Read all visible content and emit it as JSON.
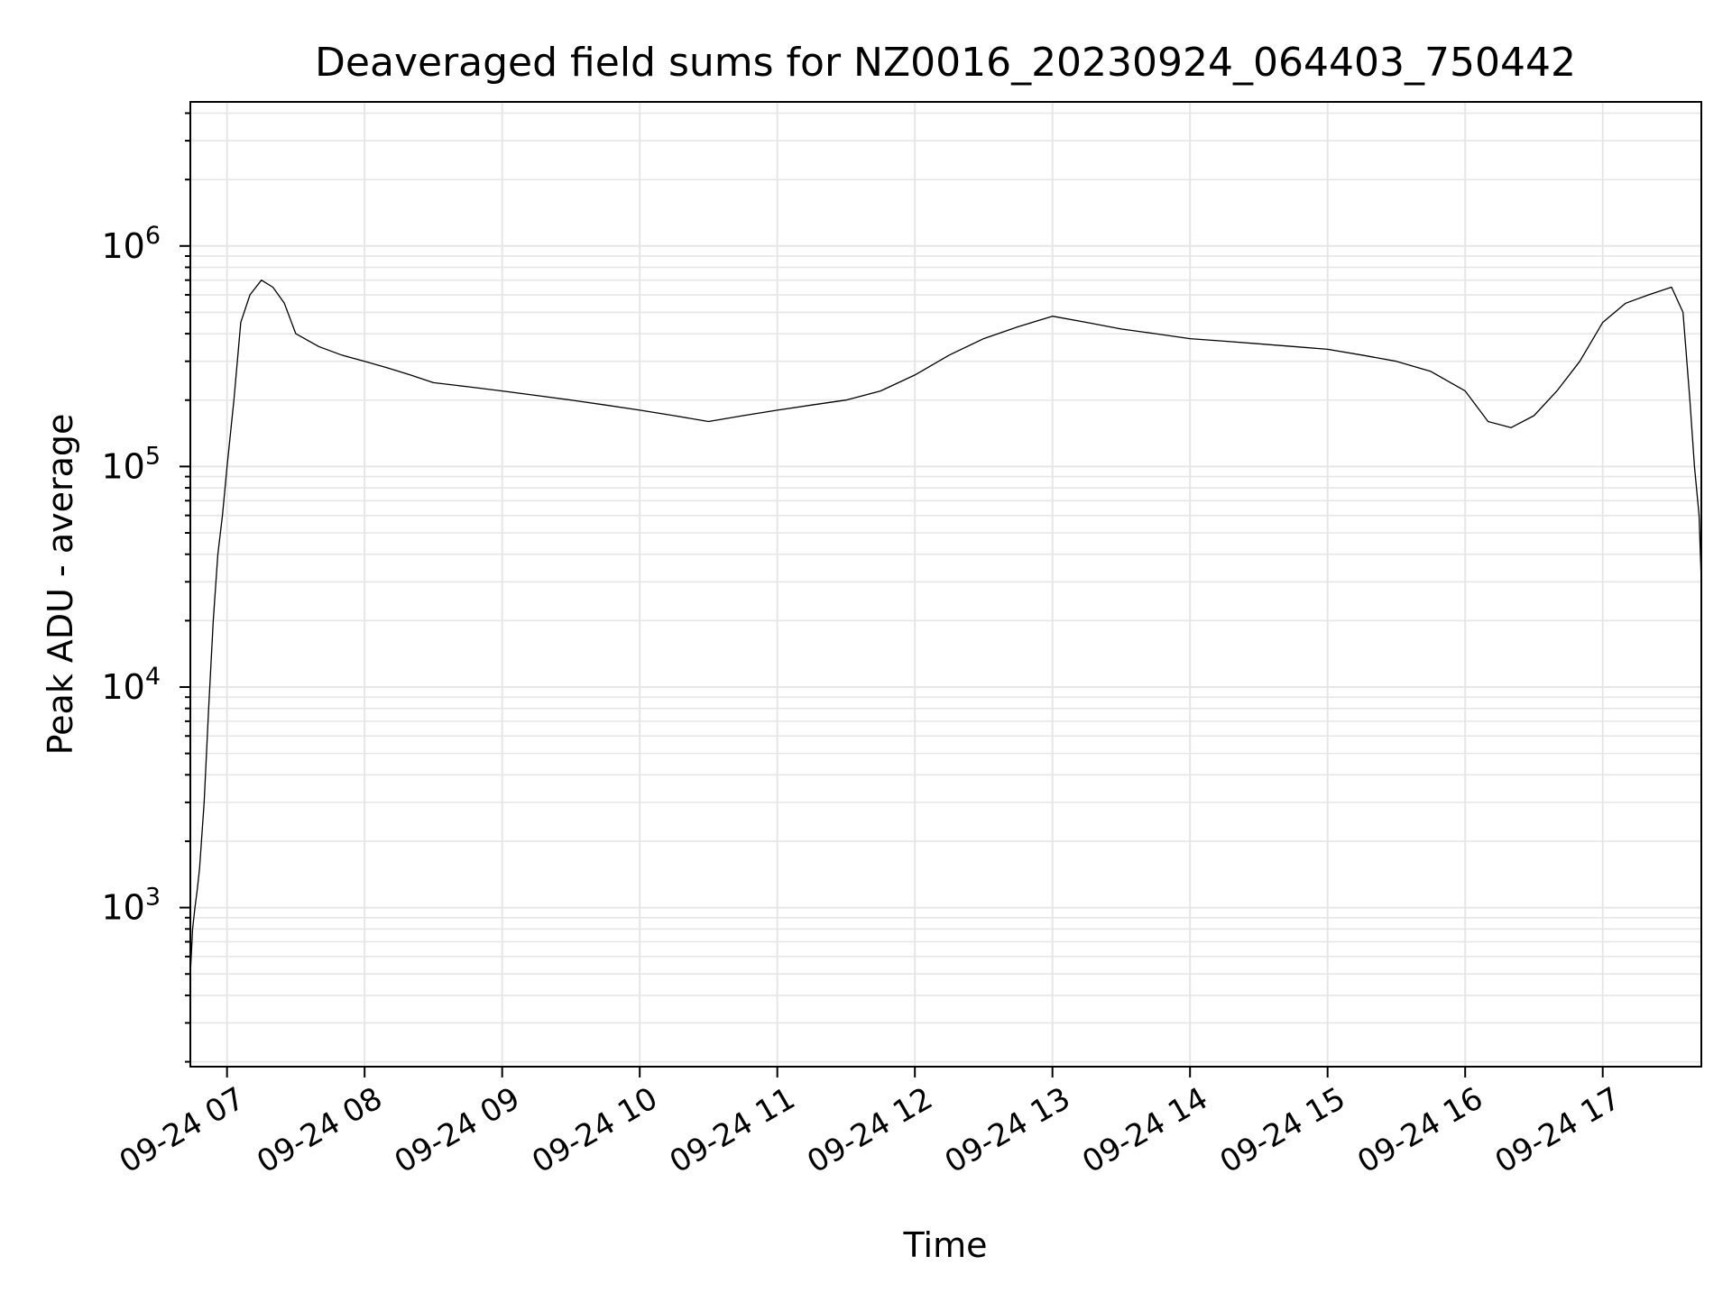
{
  "chart_data": {
    "type": "line",
    "title": "Deaveraged field sums for NZ0016_20230924_064403_750442",
    "xlabel": "Time",
    "ylabel": "Peak ADU - average",
    "yscale": "log",
    "ylim": [
      190,
      4500000
    ],
    "xlim": [
      "2023-09-24 06:44",
      "2023-09-24 17:43"
    ],
    "grid": true,
    "grid_minor": true,
    "line_color": "#000000",
    "grid_color": "#e6e6e6",
    "x_ticks": [
      {
        "t": "2023-09-24 07:00",
        "label": "09-24 07"
      },
      {
        "t": "2023-09-24 08:00",
        "label": "09-24 08"
      },
      {
        "t": "2023-09-24 09:00",
        "label": "09-24 09"
      },
      {
        "t": "2023-09-24 10:00",
        "label": "09-24 10"
      },
      {
        "t": "2023-09-24 11:00",
        "label": "09-24 11"
      },
      {
        "t": "2023-09-24 12:00",
        "label": "09-24 12"
      },
      {
        "t": "2023-09-24 13:00",
        "label": "09-24 13"
      },
      {
        "t": "2023-09-24 14:00",
        "label": "09-24 14"
      },
      {
        "t": "2023-09-24 15:00",
        "label": "09-24 15"
      },
      {
        "t": "2023-09-24 16:00",
        "label": "09-24 16"
      },
      {
        "t": "2023-09-24 17:00",
        "label": "09-24 17"
      }
    ],
    "y_ticks": [
      {
        "value": 1000,
        "mantissa": "10",
        "exponent": "3"
      },
      {
        "value": 10000,
        "mantissa": "10",
        "exponent": "4"
      },
      {
        "value": 100000,
        "mantissa": "10",
        "exponent": "5"
      },
      {
        "value": 1000000,
        "mantissa": "10",
        "exponent": "6"
      }
    ],
    "series": [
      {
        "x": [
          "2023-09-24 06:44",
          "2023-09-24 06:45",
          "2023-09-24 06:46",
          "2023-09-24 06:47",
          "2023-09-24 06:48",
          "2023-09-24 06:50",
          "2023-09-24 06:52",
          "2023-09-24 06:54",
          "2023-09-24 06:56",
          "2023-09-24 06:58",
          "2023-09-24 07:00",
          "2023-09-24 07:03",
          "2023-09-24 07:06",
          "2023-09-24 07:10",
          "2023-09-24 07:15",
          "2023-09-24 07:20",
          "2023-09-24 07:25",
          "2023-09-24 07:30",
          "2023-09-24 07:40",
          "2023-09-24 07:50",
          "2023-09-24 08:00",
          "2023-09-24 08:10",
          "2023-09-24 08:20",
          "2023-09-24 08:30",
          "2023-09-24 08:45",
          "2023-09-24 09:00",
          "2023-09-24 09:15",
          "2023-09-24 09:30",
          "2023-09-24 09:45",
          "2023-09-24 10:00",
          "2023-09-24 10:15",
          "2023-09-24 10:30",
          "2023-09-24 10:45",
          "2023-09-24 11:00",
          "2023-09-24 11:15",
          "2023-09-24 11:30",
          "2023-09-24 11:45",
          "2023-09-24 12:00",
          "2023-09-24 12:15",
          "2023-09-24 12:30",
          "2023-09-24 12:45",
          "2023-09-24 13:00",
          "2023-09-24 13:15",
          "2023-09-24 13:30",
          "2023-09-24 13:45",
          "2023-09-24 14:00",
          "2023-09-24 14:15",
          "2023-09-24 14:30",
          "2023-09-24 14:45",
          "2023-09-24 15:00",
          "2023-09-24 15:15",
          "2023-09-24 15:30",
          "2023-09-24 15:45",
          "2023-09-24 16:00",
          "2023-09-24 16:10",
          "2023-09-24 16:20",
          "2023-09-24 16:30",
          "2023-09-24 16:40",
          "2023-09-24 16:50",
          "2023-09-24 17:00",
          "2023-09-24 17:10",
          "2023-09-24 17:20",
          "2023-09-24 17:30",
          "2023-09-24 17:35",
          "2023-09-24 17:38",
          "2023-09-24 17:40",
          "2023-09-24 17:42",
          "2023-09-24 17:43"
        ],
        "y": [
          500,
          800,
          1000,
          1200,
          1500,
          3000,
          8000,
          20000,
          40000,
          60000,
          100000,
          200000,
          450000,
          600000,
          700000,
          650000,
          550000,
          400000,
          350000,
          320000,
          300000,
          280000,
          260000,
          240000,
          230000,
          220000,
          210000,
          200000,
          190000,
          180000,
          170000,
          160000,
          170000,
          180000,
          190000,
          200000,
          220000,
          260000,
          320000,
          380000,
          430000,
          480000,
          450000,
          420000,
          400000,
          380000,
          370000,
          360000,
          350000,
          340000,
          320000,
          300000,
          270000,
          220000,
          160000,
          150000,
          170000,
          220000,
          300000,
          450000,
          550000,
          600000,
          650000,
          500000,
          200000,
          100000,
          60000,
          30000
        ]
      }
    ]
  }
}
